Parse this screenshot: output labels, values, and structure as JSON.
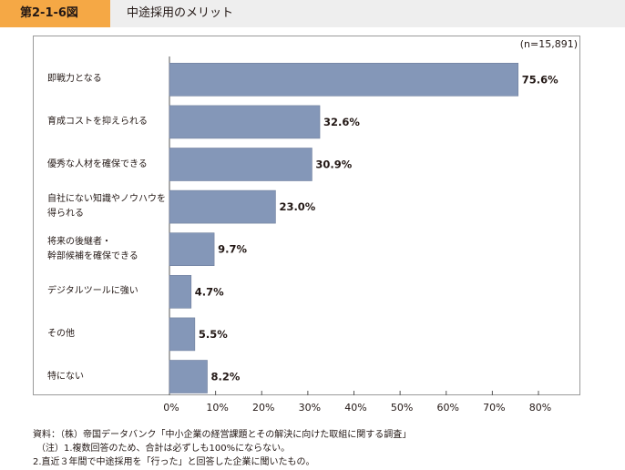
{
  "header": {
    "figure_number": "第2-1-6図",
    "title": "中途採用のメリット"
  },
  "chart_data": {
    "type": "bar",
    "orientation": "horizontal",
    "sample_note": "(n=15,891)",
    "categories": [
      [
        "即戦力となる"
      ],
      [
        "育成コストを抑えられる"
      ],
      [
        "優秀な人材を確保できる"
      ],
      [
        "自社にない知識やノウハウを",
        "得られる"
      ],
      [
        "将来の後継者・",
        "幹部候補を確保できる"
      ],
      [
        "デジタルツールに強い"
      ],
      [
        "その他"
      ],
      [
        "特にない"
      ]
    ],
    "values": [
      75.6,
      32.6,
      30.9,
      23.0,
      9.7,
      4.7,
      5.5,
      8.2
    ],
    "value_labels": [
      "75.6%",
      "32.6%",
      "30.9%",
      "23.0%",
      "9.7%",
      "4.7%",
      "5.5%",
      "8.2%"
    ],
    "x_ticks": [
      "0%",
      "10%",
      "20%",
      "30%",
      "40%",
      "50%",
      "60%",
      "70%",
      "80%"
    ],
    "xlim": [
      0,
      80
    ],
    "bar_color": "#8497b8",
    "bar_border_color": "#6f7f9d"
  },
  "footer": {
    "source": "資料：（株）帝国データバンク「中小企業の経営課題とその解決に向けた取組に関する調査」",
    "note1": "（注）1.複数回答のため、合計は必ずしも100%にならない。",
    "note2": "2.直近３年間で中途採用を「行った」と回答した企業に聞いたもの。"
  }
}
